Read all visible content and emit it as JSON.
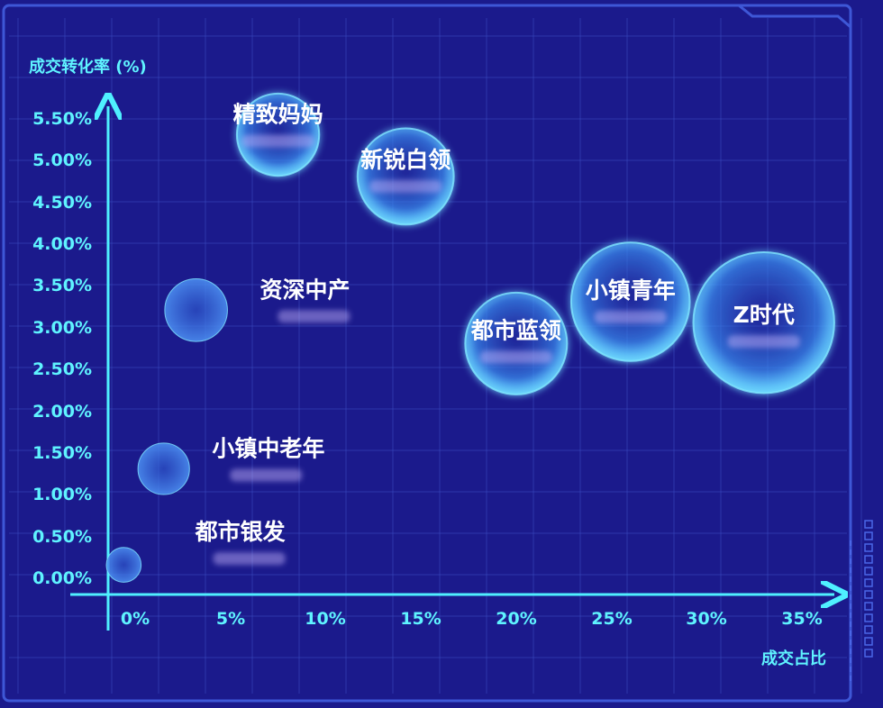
{
  "chart_data": {
    "type": "scatter",
    "ylabel": "成交转化率 (%)",
    "xlabel": "成交占比",
    "x_ticks": [
      "0%",
      "5%",
      "10%",
      "15%",
      "20%",
      "25%",
      "30%",
      "35%"
    ],
    "y_ticks": [
      "0.00%",
      "0.50%",
      "1.00%",
      "1.50%",
      "2.00%",
      "2.50%",
      "3.00%",
      "3.50%",
      "4.00%",
      "4.50%",
      "5.00%",
      "5.50%"
    ],
    "xlim": [
      -1.5,
      38
    ],
    "ylim": [
      -0.2,
      5.8
    ],
    "grid": true,
    "points": [
      {
        "name": "都市银发",
        "x": -0.6,
        "y": 0.15,
        "size": 0.6
      },
      {
        "name": "小镇中老年",
        "x": 1.5,
        "y": 1.3,
        "size": 1.2
      },
      {
        "name": "资深中产",
        "x": 3.2,
        "y": 3.2,
        "size": 1.6
      },
      {
        "name": "精致妈妈",
        "x": 7.5,
        "y": 5.3,
        "size": 2.3
      },
      {
        "name": "新锐白领",
        "x": 14.2,
        "y": 4.8,
        "size": 2.8
      },
      {
        "name": "都市蓝领",
        "x": 20.0,
        "y": 2.8,
        "size": 3.0
      },
      {
        "name": "小镇青年",
        "x": 26.0,
        "y": 3.3,
        "size": 3.6
      },
      {
        "name": "Z时代",
        "x": 33.0,
        "y": 3.05,
        "size": 4.4
      }
    ]
  },
  "colors": {
    "background": "#1b1a8c",
    "grid": "#3a4fc2",
    "axis": "#4ff0ff",
    "tick_text": "#5ff3ff",
    "label_white": "#ffffff",
    "label_pink": "#ffb6e6",
    "bubble_fill": "#3fb4ff",
    "bubble_stroke": "#7fe6ff"
  }
}
